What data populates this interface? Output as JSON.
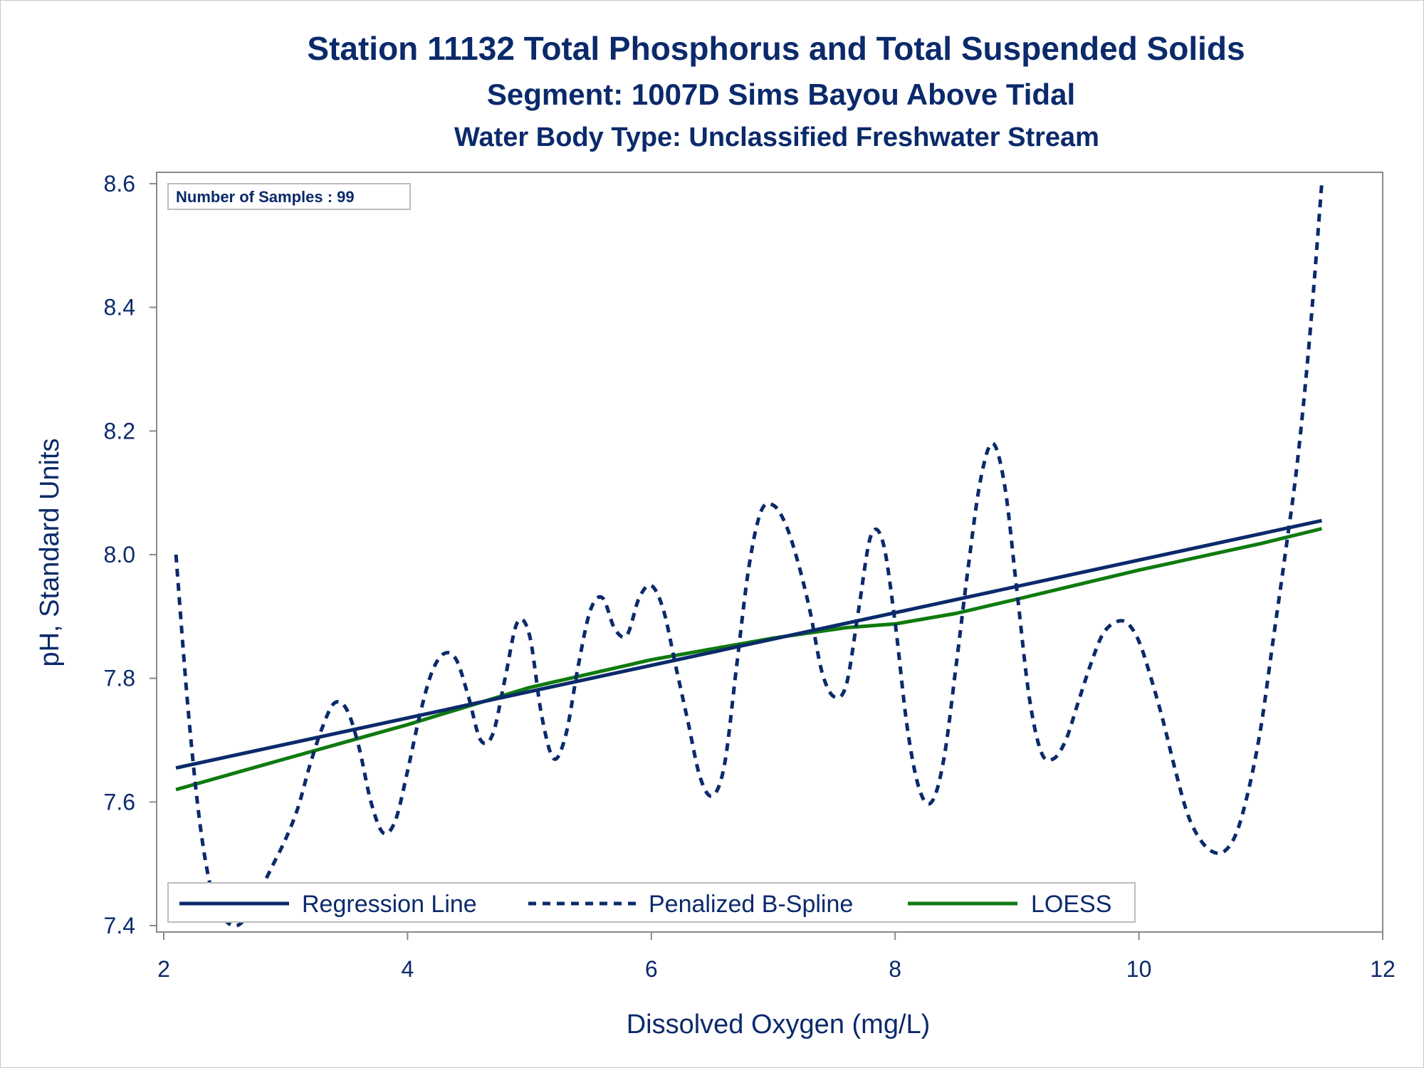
{
  "titles": {
    "line1": "Station 11132  Total Phosphorus and Total Suspended Solids",
    "line2": "Segment: 1007D  Sims Bayou Above Tidal",
    "line3": "Water Body Type: Unclassified Freshwater Stream"
  },
  "inset": {
    "label": "Number of Samples : 99"
  },
  "legend": {
    "placement": "bottom-left inside plot",
    "items": [
      {
        "label": "Regression Line",
        "style": "solid",
        "color": "#0b2a6b"
      },
      {
        "label": "Penalized B-Spline",
        "style": "dashed",
        "color": "#0b2a6b"
      },
      {
        "label": "LOESS",
        "style": "solid",
        "color": "#0f7a0f"
      }
    ]
  },
  "chart_data": {
    "type": "line",
    "xlabel": "Dissolved Oxygen (mg/L)",
    "ylabel": "pH, Standard Units",
    "xlim": [
      2,
      12
    ],
    "ylim": [
      7.4,
      8.6
    ],
    "xticks": [
      2,
      4,
      6,
      8,
      10,
      12
    ],
    "yticks": [
      7.4,
      7.6,
      7.8,
      8.0,
      8.2,
      8.4,
      8.6
    ],
    "xtick_labels": [
      "2",
      "4",
      "6",
      "8",
      "10",
      "12"
    ],
    "ytick_labels": [
      "7.4",
      "7.6",
      "7.8",
      "8.0",
      "8.2",
      "8.4",
      "8.6"
    ],
    "grid": false,
    "series": [
      {
        "name": "Regression Line",
        "color": "#0b2a6b",
        "dash": "solid",
        "x": [
          2.1,
          11.5
        ],
        "y": [
          7.655,
          8.055
        ]
      },
      {
        "name": "Penalized B-Spline",
        "color": "#0b2a6b",
        "dash": "dashed",
        "x": [
          2.1,
          2.2,
          2.3,
          2.4,
          2.5,
          2.6,
          2.7,
          2.8,
          2.9,
          3.0,
          3.1,
          3.2,
          3.3,
          3.4,
          3.5,
          3.6,
          3.7,
          3.8,
          3.9,
          4.0,
          4.1,
          4.2,
          4.3,
          4.4,
          4.5,
          4.6,
          4.7,
          4.8,
          4.9,
          5.0,
          5.1,
          5.2,
          5.3,
          5.4,
          5.5,
          5.6,
          5.7,
          5.8,
          5.9,
          6.0,
          6.1,
          6.2,
          6.3,
          6.4,
          6.5,
          6.6,
          6.7,
          6.8,
          6.9,
          7.0,
          7.1,
          7.2,
          7.3,
          7.4,
          7.5,
          7.6,
          7.7,
          7.8,
          7.9,
          8.0,
          8.1,
          8.2,
          8.3,
          8.4,
          8.5,
          8.6,
          8.7,
          8.8,
          8.9,
          9.0,
          9.1,
          9.2,
          9.3,
          9.4,
          9.5,
          9.6,
          9.7,
          9.8,
          9.9,
          10.0,
          10.1,
          10.2,
          10.3,
          10.4,
          10.5,
          10.6,
          10.7,
          10.8,
          10.9,
          11.0,
          11.1,
          11.2,
          11.3,
          11.4,
          11.5
        ],
        "y": [
          8.0,
          7.75,
          7.56,
          7.45,
          7.41,
          7.4,
          7.42,
          7.46,
          7.5,
          7.54,
          7.59,
          7.66,
          7.72,
          7.76,
          7.75,
          7.69,
          7.6,
          7.55,
          7.57,
          7.65,
          7.74,
          7.81,
          7.84,
          7.83,
          7.77,
          7.7,
          7.71,
          7.8,
          7.89,
          7.87,
          7.74,
          7.67,
          7.71,
          7.82,
          7.91,
          7.93,
          7.88,
          7.87,
          7.93,
          7.95,
          7.91,
          7.82,
          7.73,
          7.64,
          7.61,
          7.66,
          7.82,
          7.98,
          8.07,
          8.08,
          8.05,
          7.99,
          7.91,
          7.81,
          7.77,
          7.79,
          7.91,
          8.03,
          8.02,
          7.89,
          7.72,
          7.62,
          7.6,
          7.67,
          7.82,
          7.98,
          8.12,
          8.18,
          8.11,
          7.94,
          7.77,
          7.68,
          7.67,
          7.7,
          7.76,
          7.82,
          7.87,
          7.89,
          7.89,
          7.86,
          7.8,
          7.73,
          7.65,
          7.58,
          7.54,
          7.52,
          7.52,
          7.55,
          7.62,
          7.72,
          7.86,
          8.0,
          8.15,
          8.35,
          8.6
        ]
      },
      {
        "name": "LOESS",
        "color": "#0f7a0f",
        "dash": "solid",
        "x": [
          2.1,
          3.0,
          4.0,
          5.0,
          6.0,
          7.0,
          7.6,
          8.0,
          8.5,
          9.0,
          10.0,
          11.0,
          11.5
        ],
        "y": [
          7.62,
          7.67,
          7.725,
          7.785,
          7.83,
          7.865,
          7.882,
          7.888,
          7.905,
          7.928,
          7.975,
          8.018,
          8.042
        ]
      }
    ]
  }
}
